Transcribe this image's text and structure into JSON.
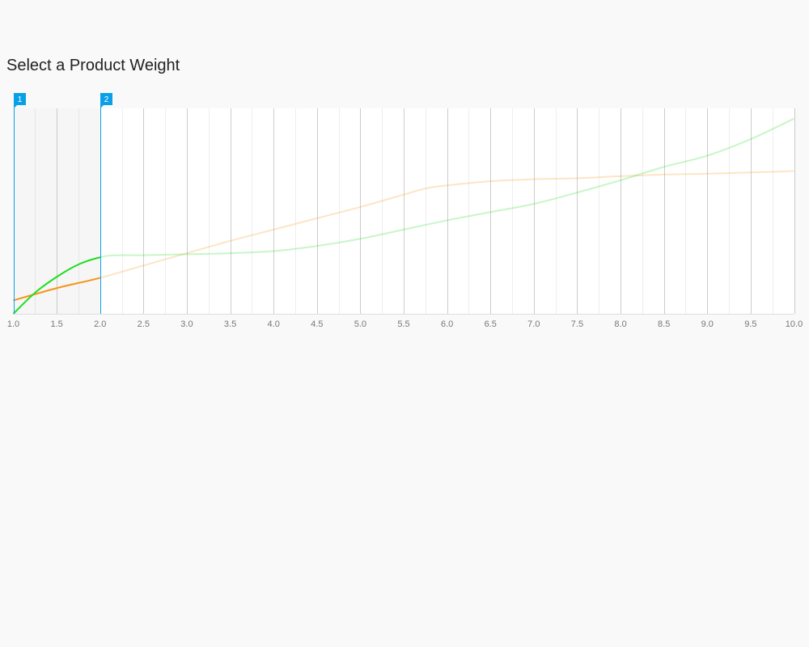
{
  "page": {
    "title": "Select a Product Weight"
  },
  "chart_data": {
    "type": "line",
    "title": "",
    "xlabel": "",
    "ylabel": "",
    "xlim": [
      1.0,
      10.0
    ],
    "ylim": [
      0,
      100
    ],
    "x_ticks": [
      "1.0",
      "1.5",
      "2.0",
      "2.5",
      "3.0",
      "3.5",
      "4.0",
      "4.5",
      "5.0",
      "5.5",
      "6.0",
      "6.5",
      "7.0",
      "7.5",
      "8.0",
      "8.5",
      "9.0",
      "9.5",
      "10.0"
    ],
    "selection": {
      "range": [
        1.0,
        2.0
      ],
      "handles": [
        {
          "label": "1",
          "value": 1.0
        },
        {
          "label": "2",
          "value": 2.0
        }
      ]
    },
    "colors": {
      "selection": "#0aa0e8",
      "orange": "#f5961a",
      "green": "#22dd22",
      "grid_major": "#cccccc",
      "grid_minor": "#eeeeee"
    },
    "series": [
      {
        "color": "#f5961a",
        "x": [
          1.0,
          1.5,
          2.0,
          2.5,
          3.0,
          3.5,
          4.0,
          4.5,
          5.0,
          5.5,
          5.75,
          6.0,
          6.5,
          7.0,
          7.5,
          8.0,
          8.5,
          9.0,
          9.5,
          10.0
        ],
        "y": [
          6.5,
          12.5,
          17.5,
          23.5,
          29.5,
          35.5,
          41,
          46.5,
          52,
          58,
          61,
          62.5,
          64.5,
          65.5,
          66,
          67,
          67.8,
          68.2,
          68.8,
          69.5
        ]
      },
      {
        "color": "#22dd22",
        "x": [
          1.0,
          1.3,
          1.7,
          2.0,
          2.2,
          2.5,
          3.0,
          3.5,
          4.0,
          4.5,
          5.0,
          5.5,
          6.0,
          6.5,
          7.0,
          7.5,
          8.0,
          8.5,
          9.0,
          9.5,
          10.0
        ],
        "y": [
          0,
          12,
          23,
          27.5,
          28.5,
          28.5,
          29,
          29.5,
          30.5,
          33,
          36.5,
          41,
          45.5,
          49.5,
          53.5,
          59,
          65,
          71.5,
          77,
          85,
          95
        ]
      }
    ]
  }
}
